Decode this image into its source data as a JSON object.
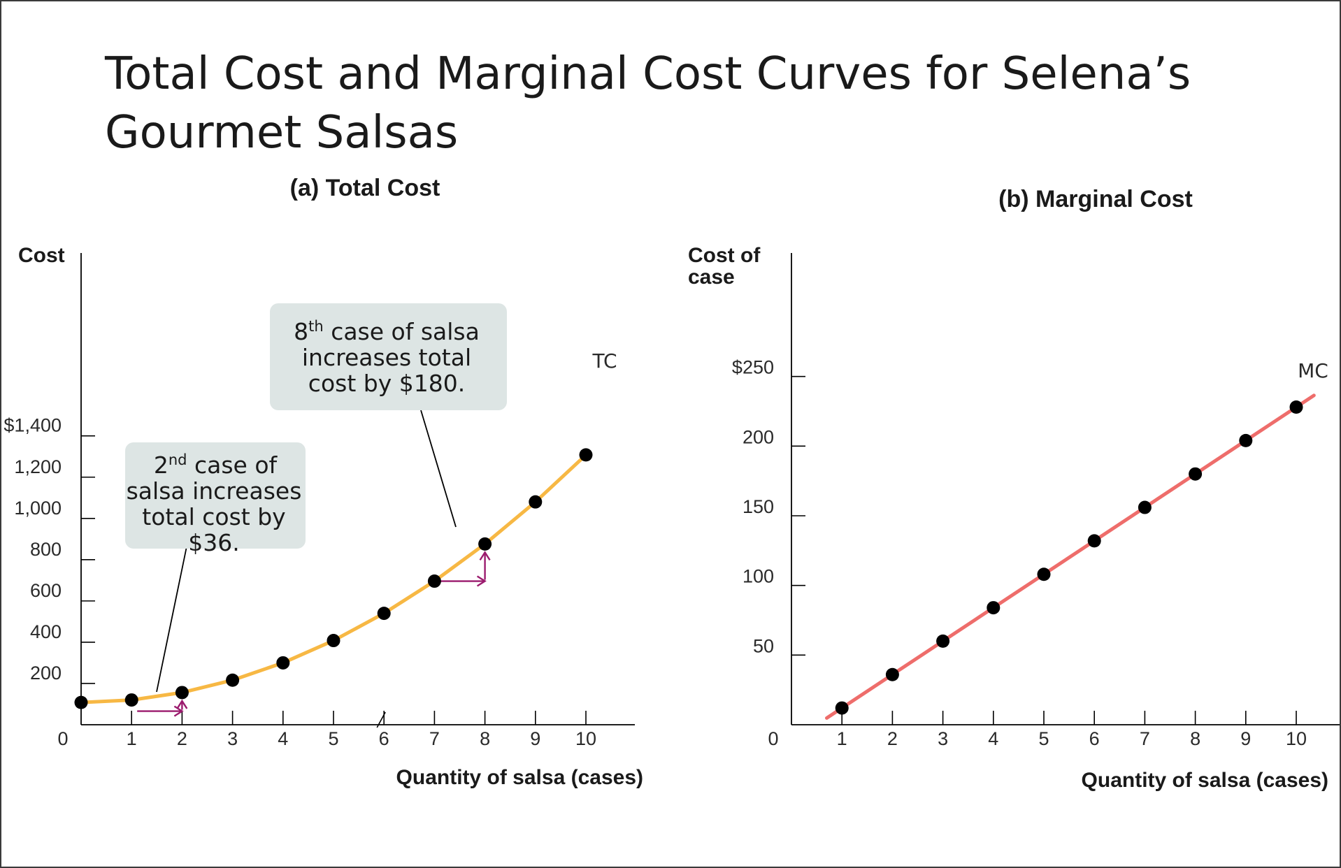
{
  "slide": {
    "title": "Total Cost and Marginal Cost Curves for Selena’s Gourmet Salsas"
  },
  "colors": {
    "tc_curve": "#f7b844",
    "mc_curve": "#ee6d6b",
    "callout_bg": "#dde5e4",
    "arrow": "#9b1b6e",
    "point": "#000000"
  },
  "chart_data": [
    {
      "type": "line",
      "title": "(a) Total Cost",
      "xlabel": "Quantity of salsa (cases)",
      "ylabel": "Cost",
      "x_ticks": [
        "0",
        "1",
        "2",
        "3",
        "4",
        "5",
        "6",
        "7",
        "8",
        "9",
        "10"
      ],
      "y_ticks": [
        "$1,400",
        "1,200",
        "1,000",
        "800",
        "600",
        "400",
        "200"
      ],
      "y_tick_values": [
        1400,
        1200,
        1000,
        800,
        600,
        400,
        200
      ],
      "xlim": [
        0,
        11
      ],
      "ylim": [
        0,
        1900
      ],
      "series": [
        {
          "name": "TC",
          "x": [
            0,
            1,
            2,
            3,
            4,
            5,
            6,
            7,
            8,
            9,
            10
          ],
          "y": [
            108,
            120,
            156,
            216,
            300,
            408,
            540,
            696,
            876,
            1080,
            1308
          ]
        }
      ],
      "annotations": [
        {
          "text_main": "2",
          "text_sup": "nd",
          "text_rest": " case of",
          "lines": [
            "salsa increases",
            "total cost by",
            "$36."
          ],
          "change": 36,
          "case": 2
        },
        {
          "text_main": "8",
          "text_sup": "th",
          "text_rest": " case of salsa",
          "lines": [
            "increases  total",
            "cost by $180."
          ],
          "change": 180,
          "case": 8
        }
      ]
    },
    {
      "type": "line",
      "title": "(b) Marginal Cost",
      "xlabel": "Quantity of salsa (cases)",
      "ylabel": "Cost of case",
      "x_ticks": [
        "0",
        "1",
        "2",
        "3",
        "4",
        "5",
        "6",
        "7",
        "8",
        "9",
        "10"
      ],
      "y_ticks": [
        "$250",
        "200",
        "150",
        "100",
        "50"
      ],
      "y_tick_values": [
        250,
        200,
        150,
        100,
        50
      ],
      "xlim": [
        0,
        11
      ],
      "ylim": [
        0,
        340
      ],
      "series": [
        {
          "name": "MC",
          "x": [
            1,
            2,
            3,
            4,
            5,
            6,
            7,
            8,
            9,
            10
          ],
          "y": [
            12,
            36,
            60,
            84,
            108,
            132,
            156,
            180,
            204,
            228
          ]
        }
      ]
    }
  ]
}
